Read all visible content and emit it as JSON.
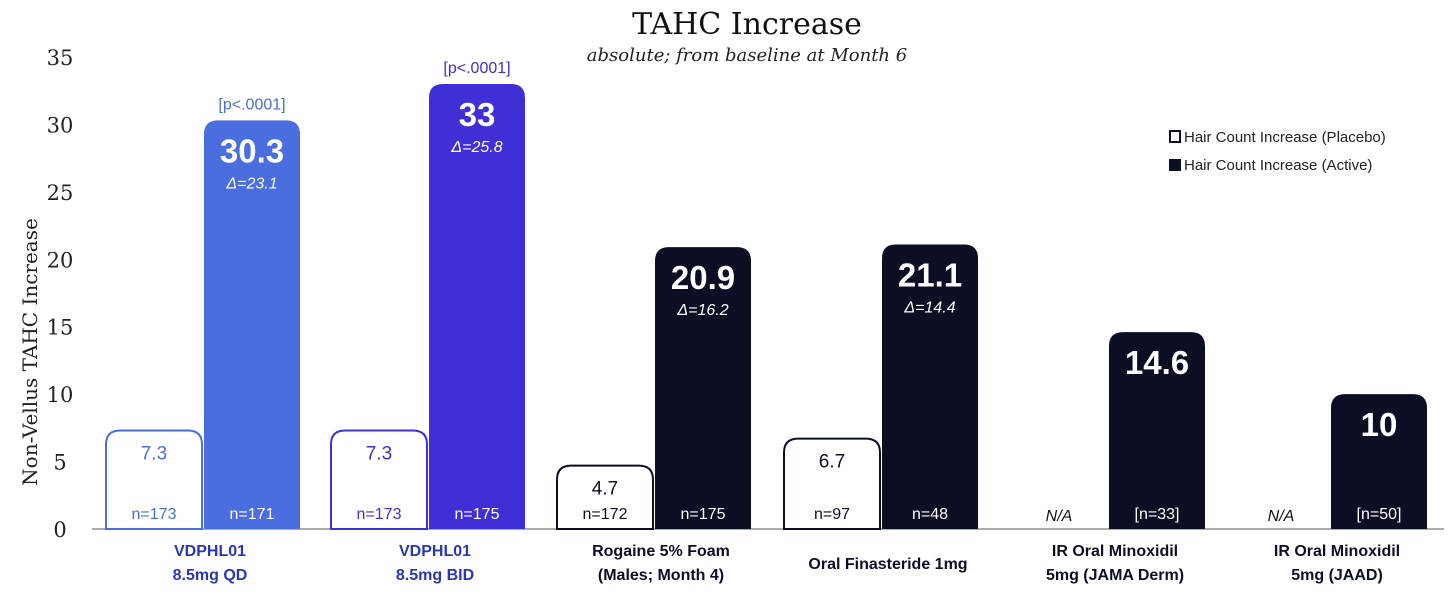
{
  "chart_data": {
    "type": "bar",
    "title": "TAHC Increase",
    "subtitle": "absolute; from baseline at Month 6",
    "ylabel": "Non-Vellus TAHC Increase",
    "ylim": [
      0,
      35
    ],
    "yticks": [
      "0",
      "5",
      "10",
      "15",
      "20",
      "25",
      "30",
      "35"
    ],
    "legend": {
      "position": "top-right",
      "items": [
        {
          "label": "Hair Count Increase (Placebo)",
          "swatch": "open"
        },
        {
          "label": "Hair Count Increase (Active)",
          "swatch": "filled"
        }
      ]
    },
    "groups": [
      {
        "label_line1": "VDPHL01",
        "label_line2": "8.5mg QD",
        "label_color": "#2b35b8",
        "placebo": {
          "value": 7.3,
          "label": "7.3",
          "n": "n=173",
          "color": "#4a6ee0"
        },
        "active": {
          "value": 30.3,
          "label": "30.3",
          "delta": "Δ=23.1",
          "n": "n=171",
          "color": "#4a6ee0",
          "pvalue": "[p<.0001]"
        }
      },
      {
        "label_line1": "VDPHL01",
        "label_line2": "8.5mg BID",
        "label_color": "#2b35b8",
        "placebo": {
          "value": 7.3,
          "label": "7.3",
          "n": "n=173",
          "color": "#3f2fd6"
        },
        "active": {
          "value": 33,
          "label": "33",
          "delta": "Δ=25.8",
          "n": "n=175",
          "color": "#3f2fd6",
          "pvalue": "[p<.0001]"
        }
      },
      {
        "label_line1": "Rogaine 5% Foam",
        "label_line2": "(Males; Month 4)",
        "label_color": "#0c0f24",
        "placebo": {
          "value": 4.7,
          "label": "4.7",
          "n": "n=172",
          "color": "#0c0f24"
        },
        "active": {
          "value": 20.9,
          "label": "20.9",
          "delta": "Δ=16.2",
          "n": "n=175",
          "color": "#0c0f24",
          "pvalue": ""
        }
      },
      {
        "label_line1": "Oral Finasteride 1mg",
        "label_line2": "",
        "label_color": "#0c0f24",
        "placebo": {
          "value": 6.7,
          "label": "6.7",
          "n": "n=97",
          "color": "#0c0f24"
        },
        "active": {
          "value": 21.1,
          "label": "21.1",
          "delta": "Δ=14.4",
          "n": "n=48",
          "color": "#0c0f24",
          "pvalue": ""
        }
      },
      {
        "label_line1": "IR Oral Minoxidil",
        "label_line2": "5mg (JAMA Derm)",
        "label_color": "#0c0f24",
        "placebo": {
          "value": null,
          "label": "N/A",
          "n": "",
          "color": "#0c0f24"
        },
        "active": {
          "value": 14.6,
          "label": "14.6",
          "delta": "",
          "n": "[n=33]",
          "color": "#0c0f24",
          "pvalue": ""
        }
      },
      {
        "label_line1": "IR Oral Minoxidil",
        "label_line2": "5mg (JAAD)",
        "label_color": "#0c0f24",
        "placebo": {
          "value": null,
          "label": "N/A",
          "n": "",
          "color": "#0c0f24"
        },
        "active": {
          "value": 10,
          "label": "10",
          "delta": "",
          "n": "[n=50]",
          "color": "#0c0f24",
          "pvalue": ""
        }
      }
    ]
  }
}
